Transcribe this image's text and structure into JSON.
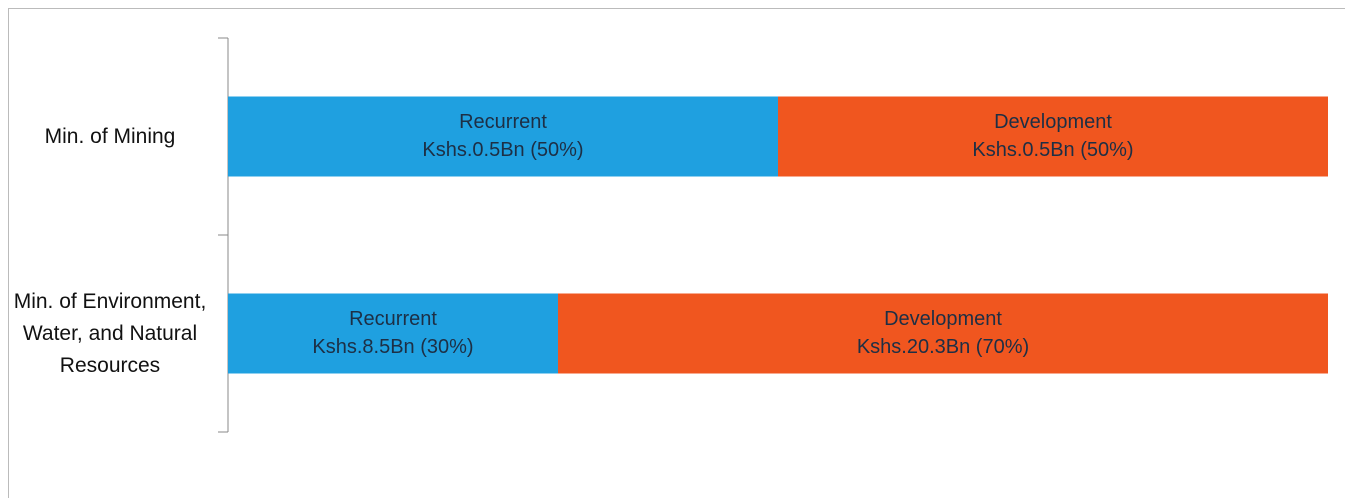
{
  "chart_data": {
    "type": "stacked-bar-horizontal",
    "categories": [
      "Min. of Mining",
      "Min. of Environment, Water, and Natural Resources"
    ],
    "series": [
      {
        "name": "Recurrent",
        "color": "#1fa0e0",
        "values": [
          50,
          30
        ],
        "value_labels": [
          "Kshs.0.5Bn (50%)",
          "Kshs.8.5Bn (30%)"
        ]
      },
      {
        "name": "Development",
        "color": "#f0561f",
        "values": [
          50,
          70
        ],
        "value_labels": [
          "Kshs.0.5Bn (50%)",
          "Kshs.20.3Bn (70%)"
        ]
      }
    ],
    "xlim": [
      0,
      100
    ]
  }
}
